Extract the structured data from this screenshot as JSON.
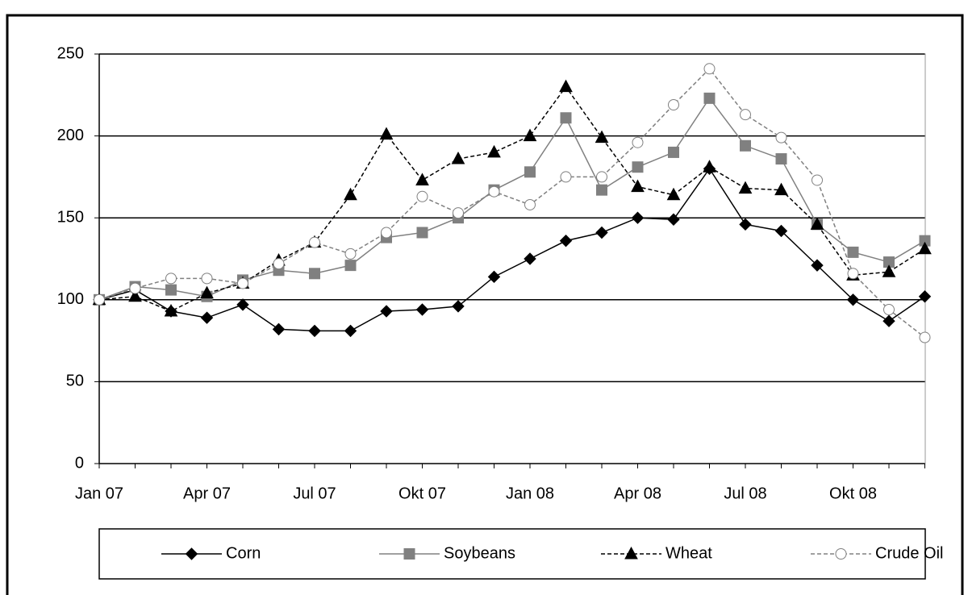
{
  "chart_data": {
    "type": "line",
    "categories": [
      "Jan 07",
      null,
      null,
      "Apr 07",
      null,
      null,
      "Jul 07",
      null,
      null,
      "Okt 07",
      null,
      null,
      "Jan 08",
      null,
      null,
      "Apr 08",
      null,
      null,
      "Jul 08",
      null,
      null,
      "Okt 08",
      null,
      null
    ],
    "series": [
      {
        "name": "Corn",
        "color": "#000000",
        "dash": false,
        "marker": "diamond",
        "values": [
          100,
          106,
          93,
          89,
          97,
          82,
          81,
          81,
          93,
          94,
          96,
          114,
          125,
          136,
          141,
          150,
          149,
          180,
          146,
          142,
          121,
          100,
          87,
          102
        ]
      },
      {
        "name": "Soybeans",
        "color": "#808080",
        "dash": false,
        "marker": "square",
        "values": [
          100,
          108,
          106,
          102,
          112,
          118,
          116,
          121,
          138,
          141,
          150,
          167,
          178,
          211,
          167,
          181,
          190,
          223,
          194,
          186,
          146,
          129,
          123,
          136
        ]
      },
      {
        "name": "Wheat",
        "color": "#000000",
        "dash": true,
        "marker": "triangle",
        "values": [
          100,
          102,
          93,
          104,
          110,
          124,
          135,
          164,
          201,
          173,
          186,
          190,
          200,
          230,
          199,
          169,
          164,
          181,
          168,
          167,
          146,
          115,
          117,
          131
        ]
      },
      {
        "name": "Crude Oil",
        "color": "#808080",
        "dash": true,
        "marker": "circle",
        "values": [
          100,
          107,
          113,
          113,
          110,
          122,
          135,
          128,
          141,
          163,
          153,
          166,
          158,
          175,
          175,
          196,
          219,
          241,
          213,
          199,
          173,
          116,
          94,
          77
        ]
      }
    ],
    "ylim": [
      0,
      250
    ],
    "yticks": [
      0,
      50,
      100,
      150,
      200,
      250
    ],
    "grid": true,
    "legend_position": "bottom"
  }
}
